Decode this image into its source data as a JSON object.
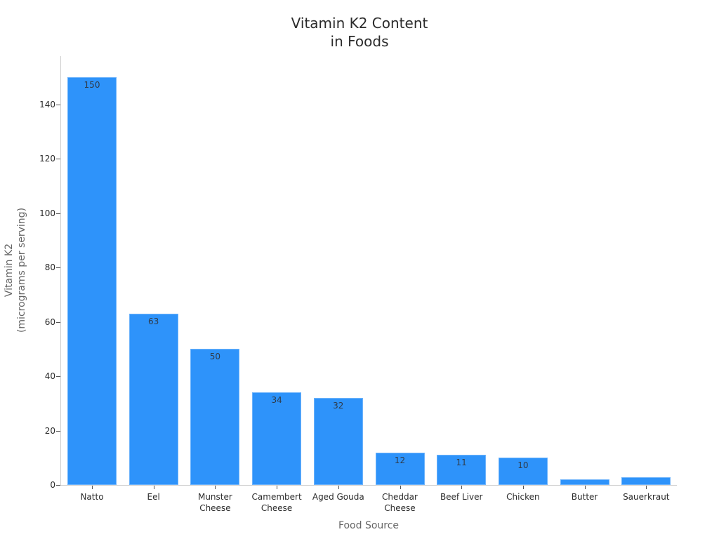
{
  "chart_data": {
    "type": "bar",
    "title": "Vitamin K2 Content in Foods",
    "title_lines": [
      "Vitamin K2 Content",
      "in Foods"
    ],
    "xlabel": "Food Source",
    "ylabel": "Vitamin K2 (micrograms per serving)",
    "ylabel_lines": [
      "Vitamin K2",
      "(micrograms per serving)"
    ],
    "categories": [
      "Natto",
      "Eel",
      "Munster Cheese",
      "Camembert Cheese",
      "Aged Gouda",
      "Cheddar Cheese",
      "Beef Liver",
      "Chicken",
      "Butter",
      "Sauerkraut"
    ],
    "category_lines": [
      [
        "Natto"
      ],
      [
        "Eel"
      ],
      [
        "Munster",
        "Cheese"
      ],
      [
        "Camembert",
        "Cheese"
      ],
      [
        "Aged Gouda"
      ],
      [
        "Cheddar",
        "Cheese"
      ],
      [
        "Beef Liver"
      ],
      [
        "Chicken"
      ],
      [
        "Butter"
      ],
      [
        "Sauerkraut"
      ]
    ],
    "values": [
      150,
      63,
      50,
      34,
      32,
      12,
      11,
      10,
      2,
      2.8
    ],
    "value_labels": [
      "150",
      "63",
      "50",
      "34",
      "32",
      "12",
      "11",
      "10",
      "",
      ""
    ],
    "yticks": [
      0,
      20,
      40,
      60,
      80,
      100,
      120,
      140
    ],
    "ylim": [
      0,
      158
    ],
    "grid": false,
    "legend": null,
    "bar_color": "#2e93fa"
  }
}
